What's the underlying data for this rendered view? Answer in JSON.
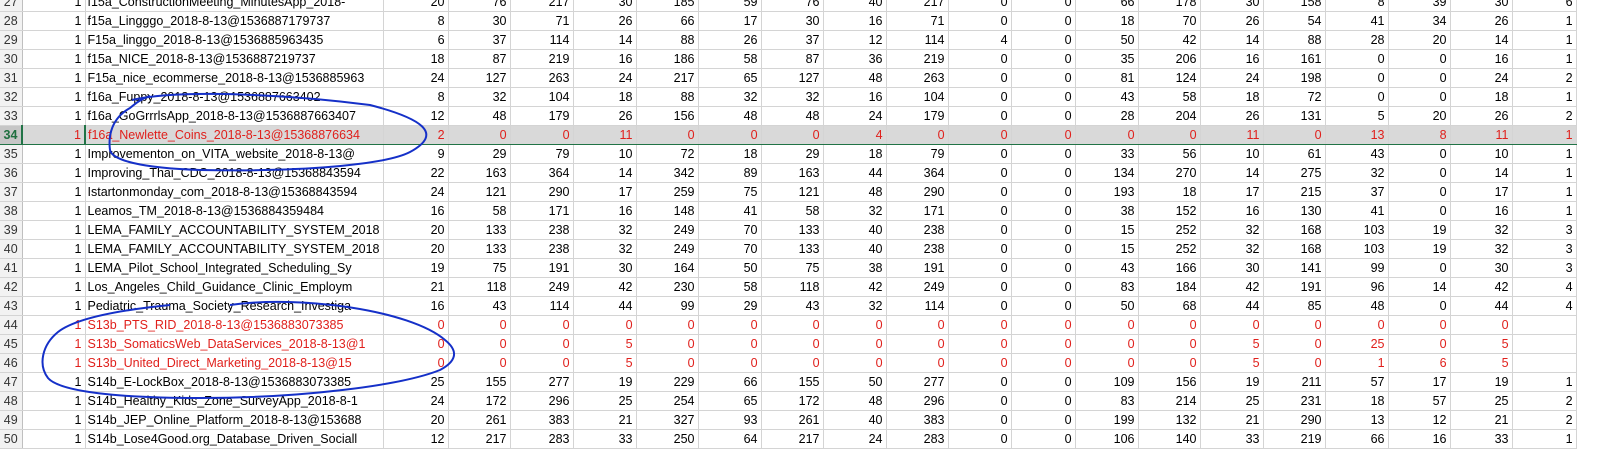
{
  "sheet": {
    "selected_row": 34,
    "rows": [
      {
        "n": "27",
        "b": "1",
        "name": "f15a_ConstructionMeeting_MinutesApp_2018-",
        "v": [
          "20",
          "76",
          "217",
          "30",
          "185",
          "59",
          "76",
          "40",
          "217",
          "0",
          "0",
          "66",
          "178",
          "30",
          "158",
          "8",
          "39",
          "30",
          "6"
        ],
        "red": false
      },
      {
        "n": "28",
        "b": "1",
        "name": "f15a_Lingggo_2018-8-13@1536887179737",
        "v": [
          "8",
          "30",
          "71",
          "26",
          "66",
          "17",
          "30",
          "16",
          "71",
          "0",
          "0",
          "18",
          "70",
          "26",
          "54",
          "41",
          "34",
          "26",
          "1"
        ],
        "red": false
      },
      {
        "n": "29",
        "b": "1",
        "name": "F15a_linggo_2018-8-13@1536885963435",
        "v": [
          "6",
          "37",
          "114",
          "14",
          "88",
          "26",
          "37",
          "12",
          "114",
          "4",
          "0",
          "50",
          "42",
          "14",
          "88",
          "28",
          "20",
          "14",
          "1"
        ],
        "red": false
      },
      {
        "n": "30",
        "b": "1",
        "name": "f15a_NICE_2018-8-13@1536887219737",
        "v": [
          "18",
          "87",
          "219",
          "16",
          "186",
          "58",
          "87",
          "36",
          "219",
          "0",
          "0",
          "35",
          "206",
          "16",
          "161",
          "0",
          "0",
          "16",
          "1"
        ],
        "red": false
      },
      {
        "n": "31",
        "b": "1",
        "name": "F15a_nice_ecommerse_2018-8-13@1536885963",
        "v": [
          "24",
          "127",
          "263",
          "24",
          "217",
          "65",
          "127",
          "48",
          "263",
          "0",
          "0",
          "81",
          "124",
          "24",
          "198",
          "0",
          "0",
          "24",
          "2"
        ],
        "red": false
      },
      {
        "n": "32",
        "b": "1",
        "name": "f16a_Fuppy_2018-8-13@1536887663402",
        "v": [
          "8",
          "32",
          "104",
          "18",
          "88",
          "32",
          "32",
          "16",
          "104",
          "0",
          "0",
          "43",
          "58",
          "18",
          "72",
          "0",
          "0",
          "18",
          "1"
        ],
        "red": false
      },
      {
        "n": "33",
        "b": "1",
        "name": "f16a_GoGrrrlsApp_2018-8-13@1536887663407",
        "v": [
          "12",
          "48",
          "179",
          "26",
          "156",
          "48",
          "48",
          "24",
          "179",
          "0",
          "0",
          "28",
          "204",
          "26",
          "131",
          "5",
          "20",
          "26",
          "2"
        ],
        "red": false
      },
      {
        "n": "34",
        "b": "1",
        "name": "f16a_Newlette_Coins_2018-8-13@15368876634",
        "v": [
          "2",
          "0",
          "0",
          "11",
          "0",
          "0",
          "0",
          "4",
          "0",
          "0",
          "0",
          "0",
          "0",
          "11",
          "0",
          "13",
          "8",
          "11",
          "1"
        ],
        "red": true
      },
      {
        "n": "35",
        "b": "1",
        "name": "Improvementon_on_VITA_website_2018-8-13@",
        "v": [
          "9",
          "29",
          "79",
          "10",
          "72",
          "18",
          "29",
          "18",
          "79",
          "0",
          "0",
          "33",
          "56",
          "10",
          "61",
          "43",
          "0",
          "10",
          "1"
        ],
        "red": false
      },
      {
        "n": "36",
        "b": "1",
        "name": "Improving_Thai_CDC_2018-8-13@15368843594",
        "v": [
          "22",
          "163",
          "364",
          "14",
          "342",
          "89",
          "163",
          "44",
          "364",
          "0",
          "0",
          "134",
          "270",
          "14",
          "275",
          "32",
          "0",
          "14",
          "1"
        ],
        "red": false
      },
      {
        "n": "37",
        "b": "1",
        "name": "Istartonmonday_com_2018-8-13@15368843594",
        "v": [
          "24",
          "121",
          "290",
          "17",
          "259",
          "75",
          "121",
          "48",
          "290",
          "0",
          "0",
          "193",
          "18",
          "17",
          "215",
          "37",
          "0",
          "17",
          "1"
        ],
        "red": false
      },
      {
        "n": "38",
        "b": "1",
        "name": "Leamos_TM_2018-8-13@1536884359484",
        "v": [
          "16",
          "58",
          "171",
          "16",
          "148",
          "41",
          "58",
          "32",
          "171",
          "0",
          "0",
          "38",
          "152",
          "16",
          "130",
          "41",
          "0",
          "16",
          "1"
        ],
        "red": false
      },
      {
        "n": "39",
        "b": "1",
        "name": "LEMA_FAMILY_ACCOUNTABILITY_SYSTEM_2018",
        "v": [
          "20",
          "133",
          "238",
          "32",
          "249",
          "70",
          "133",
          "40",
          "238",
          "0",
          "0",
          "15",
          "252",
          "32",
          "168",
          "103",
          "19",
          "32",
          "3"
        ],
        "red": false
      },
      {
        "n": "40",
        "b": "1",
        "name": "LEMA_FAMILY_ACCOUNTABILITY_SYSTEM_2018",
        "v": [
          "20",
          "133",
          "238",
          "32",
          "249",
          "70",
          "133",
          "40",
          "238",
          "0",
          "0",
          "15",
          "252",
          "32",
          "168",
          "103",
          "19",
          "32",
          "3"
        ],
        "red": false
      },
      {
        "n": "41",
        "b": "1",
        "name": "LEMA_Pilot_School_Integrated_Scheduling_Sy",
        "v": [
          "19",
          "75",
          "191",
          "30",
          "164",
          "50",
          "75",
          "38",
          "191",
          "0",
          "0",
          "43",
          "166",
          "30",
          "141",
          "99",
          "0",
          "30",
          "3"
        ],
        "red": false
      },
      {
        "n": "42",
        "b": "1",
        "name": "Los_Angeles_Child_Guidance_Clinic_Employm",
        "v": [
          "21",
          "118",
          "249",
          "42",
          "230",
          "58",
          "118",
          "42",
          "249",
          "0",
          "0",
          "83",
          "184",
          "42",
          "191",
          "96",
          "14",
          "42",
          "4"
        ],
        "red": false
      },
      {
        "n": "43",
        "b": "1",
        "name": "Pediatric_Trauma_Society_Research_Investiga",
        "v": [
          "16",
          "43",
          "114",
          "44",
          "99",
          "29",
          "43",
          "32",
          "114",
          "0",
          "0",
          "50",
          "68",
          "44",
          "85",
          "48",
          "0",
          "44",
          "4"
        ],
        "red": false
      },
      {
        "n": "44",
        "b": "1",
        "name": "S13b_PTS_RID_2018-8-13@1536883073385",
        "v": [
          "0",
          "0",
          "0",
          "0",
          "0",
          "0",
          "0",
          "0",
          "0",
          "0",
          "0",
          "0",
          "0",
          "0",
          "0",
          "0",
          "0",
          "0",
          ""
        ],
        "red": true
      },
      {
        "n": "45",
        "b": "1",
        "name": "S13b_SomaticsWeb_DataServices_2018-8-13@1",
        "v": [
          "0",
          "0",
          "0",
          "5",
          "0",
          "0",
          "0",
          "0",
          "0",
          "0",
          "0",
          "0",
          "0",
          "5",
          "0",
          "25",
          "0",
          "5",
          ""
        ],
        "red": true
      },
      {
        "n": "46",
        "b": "1",
        "name": "S13b_United_Direct_Marketing_2018-8-13@15",
        "v": [
          "0",
          "0",
          "0",
          "5",
          "0",
          "0",
          "0",
          "0",
          "0",
          "0",
          "0",
          "0",
          "0",
          "5",
          "0",
          "1",
          "6",
          "5",
          ""
        ],
        "red": true
      },
      {
        "n": "47",
        "b": "1",
        "name": "S14b_E-LockBox_2018-8-13@1536883073385",
        "v": [
          "25",
          "155",
          "277",
          "19",
          "229",
          "66",
          "155",
          "50",
          "277",
          "0",
          "0",
          "109",
          "156",
          "19",
          "211",
          "57",
          "17",
          "19",
          "1"
        ],
        "red": false
      },
      {
        "n": "48",
        "b": "1",
        "name": "S14b_Healthy_Kids_Zone_SurveyApp_2018-8-1",
        "v": [
          "24",
          "172",
          "296",
          "25",
          "254",
          "65",
          "172",
          "48",
          "296",
          "0",
          "0",
          "83",
          "214",
          "25",
          "231",
          "18",
          "57",
          "25",
          "2"
        ],
        "red": false
      },
      {
        "n": "49",
        "b": "1",
        "name": "S14b_JEP_Online_Platform_2018-8-13@153688",
        "v": [
          "20",
          "261",
          "383",
          "21",
          "327",
          "93",
          "261",
          "40",
          "383",
          "0",
          "0",
          "199",
          "132",
          "21",
          "290",
          "13",
          "12",
          "21",
          "2"
        ],
        "red": false
      },
      {
        "n": "50",
        "b": "1",
        "name": "S14b_Lose4Good.org_Database_Driven_Sociall",
        "v": [
          "12",
          "217",
          "283",
          "33",
          "250",
          "64",
          "217",
          "24",
          "283",
          "0",
          "0",
          "106",
          "140",
          "33",
          "219",
          "66",
          "16",
          "33",
          "1"
        ],
        "red": false
      }
    ]
  },
  "annotations": {
    "ellipse_color": "#1530c8",
    "ellipse_count": 2
  }
}
